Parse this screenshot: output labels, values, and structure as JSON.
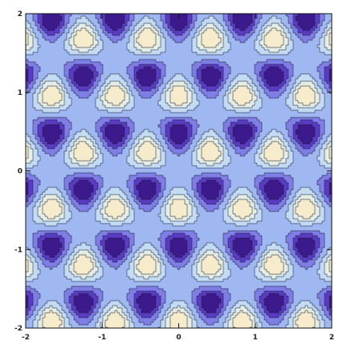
{
  "chart_data": {
    "type": "heatmap",
    "subtype": "contour",
    "title": "",
    "xlabel": "",
    "ylabel": "",
    "xlim": [
      -2,
      2
    ],
    "ylim": [
      -2,
      2
    ],
    "x_ticks": [
      -2,
      -1,
      0,
      1,
      2
    ],
    "y_ticks": [
      -2,
      -1,
      0,
      1,
      2
    ],
    "x_tick_labels": [
      "-2",
      "-1",
      "0",
      "1",
      "2"
    ],
    "y_tick_labels": [
      "-2",
      "-1",
      "0",
      "1",
      "2"
    ],
    "grid": false,
    "legend": "none",
    "contour_levels": 7,
    "colors": {
      "low_extreme": "#3d1a8c",
      "low_mid": "#5a3cc4",
      "low": "#7f7de6",
      "zero": "#9fb8f2",
      "high": "#c4dcf3",
      "high_mid": "#e4eee4",
      "high_extreme": "#f6eccc",
      "contour_line": "#1d1d3a",
      "frame": "#111111"
    }
  }
}
